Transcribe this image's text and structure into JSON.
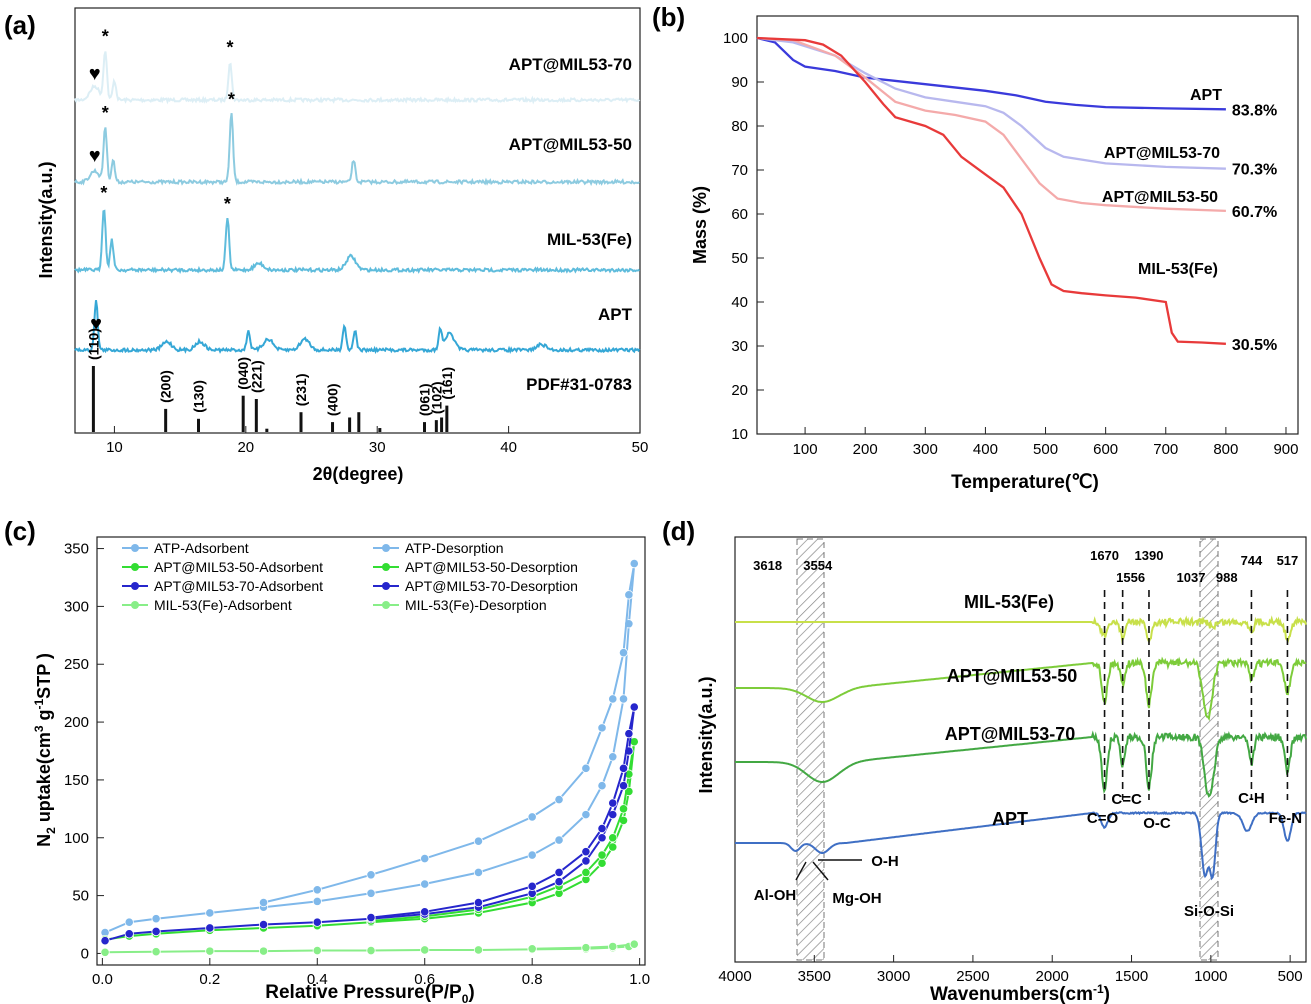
{
  "panel_labels": [
    "(a)",
    "(b)",
    "(c)",
    "(d)"
  ],
  "chart_data": [
    {
      "panel": "(a)",
      "type": "line",
      "xlabel": "2θ(degree)",
      "ylabel": "Intensity(a.u.)",
      "xlim": [
        7,
        50
      ],
      "xticks": [
        10,
        20,
        30,
        40,
        50
      ],
      "series": [
        {
          "name": "APT@MIL53-70",
          "color": "#DCEEF5",
          "peaks": [
            [
              8.5,
              0.25
            ],
            [
              9.3,
              0.9
            ],
            [
              10.0,
              0.35
            ],
            [
              18.8,
              0.7
            ]
          ],
          "markers": [
            {
              "symbol": "♥",
              "x": 8.5
            },
            {
              "symbol": "*",
              "x": 9.3
            },
            {
              "symbol": "*",
              "x": 18.8
            }
          ]
        },
        {
          "name": "APT@MIL53-50",
          "color": "#8DCBE0",
          "peaks": [
            [
              8.5,
              0.2
            ],
            [
              9.3,
              1.0
            ],
            [
              9.9,
              0.4
            ],
            [
              18.9,
              1.25
            ],
            [
              28.2,
              0.4
            ]
          ],
          "markers": [
            {
              "symbol": "♥",
              "x": 8.5
            },
            {
              "symbol": "*",
              "x": 9.3
            },
            {
              "symbol": "*",
              "x": 18.9
            }
          ]
        },
        {
          "name": "MIL-53(Fe)",
          "color": "#5FBCDC",
          "peaks": [
            [
              9.2,
              1.15
            ],
            [
              9.8,
              0.55
            ],
            [
              18.6,
              0.95
            ],
            [
              28.0,
              0.25
            ],
            [
              21.0,
              0.12
            ]
          ],
          "markers": [
            {
              "symbol": "*",
              "x": 9.2
            },
            {
              "symbol": "*",
              "x": 18.6
            }
          ]
        },
        {
          "name": "APT",
          "color": "#35A7D6",
          "peaks": [
            [
              8.6,
              0.9
            ],
            [
              14.0,
              0.15
            ],
            [
              16.5,
              0.15
            ],
            [
              20.2,
              0.35
            ],
            [
              21.7,
              0.2
            ],
            [
              24.5,
              0.2
            ],
            [
              27.5,
              0.45
            ],
            [
              28.3,
              0.35
            ],
            [
              34.8,
              0.35
            ],
            [
              35.5,
              0.3
            ],
            [
              42.5,
              0.1
            ]
          ],
          "markers": [
            {
              "symbol": "♥",
              "x": 8.6
            }
          ]
        }
      ],
      "reference": {
        "name": "PDF#31-0783",
        "sticks": [
          [
            8.4,
            1.0
          ],
          [
            13.9,
            0.35
          ],
          [
            16.4,
            0.2
          ],
          [
            19.8,
            0.55
          ],
          [
            20.8,
            0.5
          ],
          [
            21.6,
            0.05
          ],
          [
            24.2,
            0.3
          ],
          [
            26.6,
            0.15
          ],
          [
            27.9,
            0.22
          ],
          [
            28.6,
            0.3
          ],
          [
            30.2,
            0.06
          ],
          [
            33.6,
            0.15
          ],
          [
            34.5,
            0.18
          ],
          [
            34.9,
            0.22
          ],
          [
            35.3,
            0.4
          ]
        ],
        "labels": [
          {
            "text": "(110)",
            "x": 8.4
          },
          {
            "text": "(200)",
            "x": 13.9
          },
          {
            "text": "(130)",
            "x": 16.4
          },
          {
            "text": "(040)",
            "x": 19.8
          },
          {
            "text": "(221)",
            "x": 20.8
          },
          {
            "text": "(231)",
            "x": 24.2
          },
          {
            "text": "(400)",
            "x": 26.6
          },
          {
            "text": "(061)",
            "x": 33.6
          },
          {
            "text": "(102)",
            "x": 34.5
          },
          {
            "text": "(161)",
            "x": 35.3
          }
        ]
      }
    },
    {
      "panel": "(b)",
      "type": "line",
      "xlabel": "Temperature(℃)",
      "ylabel": "Mass (%)",
      "xlim": [
        20,
        920
      ],
      "ylim": [
        10,
        105
      ],
      "xticks": [
        100,
        200,
        300,
        400,
        500,
        600,
        700,
        800,
        900
      ],
      "yticks": [
        10,
        20,
        30,
        40,
        50,
        60,
        70,
        80,
        90,
        100
      ],
      "series": [
        {
          "name": "APT",
          "end_label": "83.8%",
          "color": "#3A3ADB",
          "x": [
            20,
            50,
            80,
            100,
            150,
            200,
            300,
            400,
            450,
            500,
            550,
            600,
            700,
            800
          ],
          "y": [
            100,
            99,
            95,
            93.5,
            92.5,
            91,
            89.5,
            88,
            87,
            85.5,
            84.8,
            84.3,
            84,
            83.8
          ]
        },
        {
          "name": "APT@MIL53-70",
          "end_label": "70.3%",
          "color": "#B8B8EE",
          "x": [
            20,
            80,
            150,
            200,
            250,
            300,
            350,
            400,
            430,
            460,
            500,
            530,
            600,
            700,
            800
          ],
          "y": [
            100,
            99,
            96,
            92,
            88.5,
            86.5,
            85.5,
            84.5,
            83,
            80,
            75,
            73,
            71.5,
            70.7,
            70.3
          ]
        },
        {
          "name": "APT@MIL53-50",
          "end_label": "60.7%",
          "color": "#F4AAAA",
          "x": [
            20,
            80,
            150,
            200,
            250,
            300,
            350,
            400,
            430,
            460,
            490,
            520,
            560,
            600,
            700,
            800
          ],
          "y": [
            100,
            99.5,
            96,
            91,
            85.5,
            83.5,
            82.5,
            81,
            78,
            72.5,
            67,
            63.5,
            62.5,
            62,
            61.2,
            60.7
          ]
        },
        {
          "name": "MIL-53(Fe)",
          "end_label": "30.5%",
          "color": "#E83A3A",
          "x": [
            20,
            100,
            130,
            160,
            200,
            230,
            250,
            300,
            330,
            360,
            400,
            430,
            460,
            490,
            510,
            530,
            560,
            600,
            650,
            700,
            710,
            720,
            760,
            800
          ],
          "y": [
            100,
            99.5,
            98.5,
            96,
            90,
            85,
            82,
            80,
            78,
            73,
            69,
            66,
            60,
            50,
            44,
            42.5,
            42,
            41.5,
            41,
            40,
            33,
            31,
            30.8,
            30.5
          ]
        }
      ]
    },
    {
      "panel": "(c)",
      "type": "line",
      "xlabel": "Relative Pressure(P/P0)",
      "ylabel": "N2 uptake(cm3 g-1STP)",
      "xlim": [
        -0.01,
        1.01
      ],
      "ylim": [
        -10,
        360
      ],
      "xticks": [
        0.0,
        0.2,
        0.4,
        0.6,
        0.8,
        1.0
      ],
      "yticks": [
        0,
        50,
        100,
        150,
        200,
        250,
        300,
        350
      ],
      "legend_position": "top",
      "legend": [
        "ATP-Adsorbent",
        "ATP-Desorption",
        "APT@MIL53-50-Adsorbent",
        "APT@MIL53-50-Desorption",
        "APT@MIL53-70-Adsorbent",
        "APT@MIL53-70-Desorption",
        "MIL-53(Fe)-Adsorbent",
        "MIL-53(Fe)-Desorption"
      ],
      "series": [
        {
          "name": "ATP-Adsorbent",
          "color": "#7FB8EA",
          "x": [
            0.005,
            0.05,
            0.1,
            0.2,
            0.3,
            0.4,
            0.5,
            0.6,
            0.7,
            0.8,
            0.85,
            0.9,
            0.93,
            0.95,
            0.97,
            0.98,
            0.99
          ],
          "y": [
            18,
            27,
            30,
            35,
            40,
            45,
            52,
            60,
            70,
            85,
            98,
            120,
            145,
            170,
            220,
            285,
            337
          ]
        },
        {
          "name": "ATP-Desorption",
          "color": "#7FB8EA",
          "x": [
            0.99,
            0.98,
            0.97,
            0.95,
            0.93,
            0.9,
            0.85,
            0.8,
            0.7,
            0.6,
            0.5,
            0.4,
            0.3
          ],
          "y": [
            337,
            310,
            260,
            220,
            195,
            160,
            133,
            118,
            97,
            82,
            68,
            55,
            44
          ]
        },
        {
          "name": "APT@MIL53-50-Adsorbent",
          "color": "#33DD33",
          "x": [
            0.005,
            0.05,
            0.1,
            0.2,
            0.3,
            0.4,
            0.5,
            0.6,
            0.7,
            0.8,
            0.85,
            0.9,
            0.93,
            0.95,
            0.97,
            0.98,
            0.99
          ],
          "y": [
            12,
            15,
            17,
            20,
            22,
            24,
            27,
            30,
            35,
            44,
            52,
            64,
            78,
            92,
            115,
            140,
            183
          ]
        },
        {
          "name": "APT@MIL53-50-Desorption",
          "color": "#33DD33",
          "x": [
            0.99,
            0.98,
            0.97,
            0.95,
            0.93,
            0.9,
            0.85,
            0.8,
            0.7,
            0.6,
            0.5
          ],
          "y": [
            183,
            155,
            125,
            100,
            85,
            70,
            58,
            49,
            38,
            32,
            28
          ]
        },
        {
          "name": "APT@MIL53-70-Adsorbent",
          "color": "#2626CC",
          "x": [
            0.005,
            0.05,
            0.1,
            0.2,
            0.3,
            0.4,
            0.5,
            0.6,
            0.7,
            0.8,
            0.85,
            0.9,
            0.93,
            0.95,
            0.97,
            0.98,
            0.99
          ],
          "y": [
            11,
            17,
            19,
            22,
            25,
            27,
            30,
            34,
            40,
            52,
            62,
            80,
            100,
            120,
            145,
            175,
            213
          ]
        },
        {
          "name": "APT@MIL53-70-Desorption",
          "color": "#2626CC",
          "x": [
            0.99,
            0.98,
            0.97,
            0.95,
            0.93,
            0.9,
            0.85,
            0.8,
            0.7,
            0.6,
            0.5
          ],
          "y": [
            213,
            190,
            160,
            130,
            108,
            88,
            70,
            58,
            44,
            36,
            31
          ]
        },
        {
          "name": "MIL-53(Fe)-Adsorbent",
          "color": "#88EE88",
          "x": [
            0.005,
            0.1,
            0.2,
            0.3,
            0.4,
            0.5,
            0.6,
            0.7,
            0.8,
            0.9,
            0.95,
            0.98,
            0.99
          ],
          "y": [
            1,
            1.5,
            2,
            2,
            2.5,
            2.5,
            3,
            3,
            3.5,
            4,
            5,
            6,
            8
          ]
        },
        {
          "name": "MIL-53(Fe)-Desorption",
          "color": "#88EE88",
          "x": [
            0.99,
            0.95,
            0.9,
            0.8
          ],
          "y": [
            8,
            6,
            5,
            4
          ]
        }
      ]
    },
    {
      "panel": "(d)",
      "type": "line",
      "xlabel": "Wavenumbers(cm-1)",
      "ylabel": "Intensity(a.u.)",
      "xlim": [
        4000,
        400
      ],
      "xticks": [
        4000,
        3500,
        3000,
        2500,
        2000,
        1500,
        1000,
        500
      ],
      "series": [
        {
          "name": "MIL-53(Fe)",
          "color": "#C8E04A"
        },
        {
          "name": "APT@MIL53-50",
          "color": "#7DCC3A"
        },
        {
          "name": "APT@MIL53-70",
          "color": "#43A843"
        },
        {
          "name": "APT",
          "color": "#3F6FC4"
        }
      ],
      "peak_numbers": [
        {
          "text": "3618",
          "x": 3618
        },
        {
          "text": "3554",
          "x": 3554
        },
        {
          "text": "1670",
          "x": 1670
        },
        {
          "text": "1556",
          "x": 1556
        },
        {
          "text": "1390",
          "x": 1390
        },
        {
          "text": "1037",
          "x": 1037
        },
        {
          "text": "988",
          "x": 988
        },
        {
          "text": "744",
          "x": 744
        },
        {
          "text": "517",
          "x": 517
        }
      ],
      "assignments": [
        {
          "text": "C=O",
          "x": 1670
        },
        {
          "text": "C=C",
          "x": 1556
        },
        {
          "text": "O-C",
          "x": 1390
        },
        {
          "text": "C-H",
          "x": 744
        },
        {
          "text": "Fe-N",
          "x": 517
        },
        {
          "text": "Al-OH",
          "x": 3618
        },
        {
          "text": "Mg-OH",
          "x": 3554
        },
        {
          "text": "O-H",
          "x": 3450
        },
        {
          "text": "Si-O-Si",
          "x": 1000
        }
      ]
    }
  ]
}
